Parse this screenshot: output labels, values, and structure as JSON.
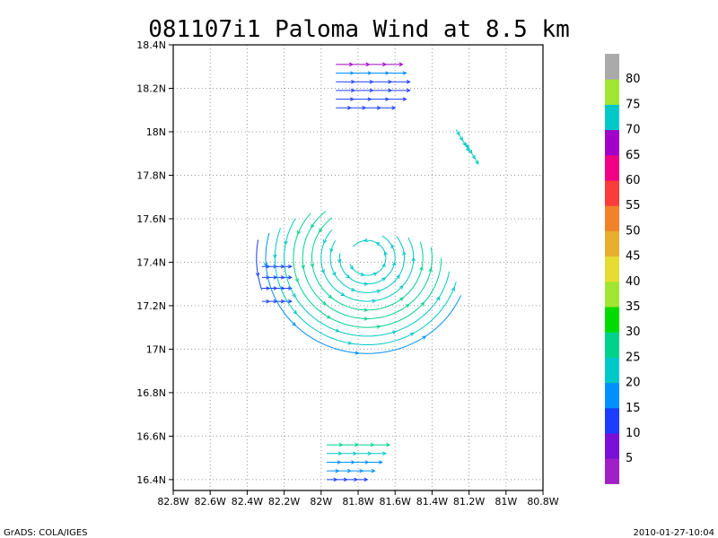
{
  "chart_data": {
    "type": "vector",
    "title": "081107i1 Paloma Wind at 8.5 km",
    "xlabel": "",
    "ylabel": "",
    "xlim": [
      -82.8,
      -80.8
    ],
    "ylim": [
      16.35,
      18.4
    ],
    "grid": true,
    "x_ticks": [
      {
        "value": -82.8,
        "label": "82.8W"
      },
      {
        "value": -82.6,
        "label": "82.6W"
      },
      {
        "value": -82.4,
        "label": "82.4W"
      },
      {
        "value": -82.2,
        "label": "82.2W"
      },
      {
        "value": -82.0,
        "label": "82W"
      },
      {
        "value": -81.8,
        "label": "81.8W"
      },
      {
        "value": -81.6,
        "label": "81.6W"
      },
      {
        "value": -81.4,
        "label": "81.4W"
      },
      {
        "value": -81.2,
        "label": "81.2W"
      },
      {
        "value": -81.0,
        "label": "81W"
      },
      {
        "value": -80.8,
        "label": "80.8W"
      }
    ],
    "y_ticks": [
      {
        "value": 16.4,
        "label": "16.4N"
      },
      {
        "value": 16.6,
        "label": "16.6N"
      },
      {
        "value": 16.8,
        "label": "16.8N"
      },
      {
        "value": 17.0,
        "label": "17N"
      },
      {
        "value": 17.2,
        "label": "17.2N"
      },
      {
        "value": 17.4,
        "label": "17.4N"
      },
      {
        "value": 17.6,
        "label": "17.6N"
      },
      {
        "value": 17.8,
        "label": "17.8N"
      },
      {
        "value": 18.0,
        "label": "18N"
      },
      {
        "value": 18.2,
        "label": "18.2N"
      },
      {
        "value": 18.4,
        "label": "18.4N"
      }
    ],
    "vortex_center": {
      "lon": -81.75,
      "lat": 17.42
    },
    "streamlines": [
      {
        "lon": -81.92,
        "lat": 18.31,
        "u": 1,
        "v": 0,
        "len": 0.36,
        "speed": 65
      },
      {
        "lon": -81.92,
        "lat": 18.27,
        "u": 1,
        "v": 0,
        "len": 0.38,
        "speed": 15
      },
      {
        "lon": -81.92,
        "lat": 18.23,
        "u": 1,
        "v": 0,
        "len": 0.4,
        "speed": 13
      },
      {
        "lon": -81.92,
        "lat": 18.19,
        "u": 1,
        "v": 0,
        "len": 0.4,
        "speed": 12
      },
      {
        "lon": -81.92,
        "lat": 18.15,
        "u": 1,
        "v": 0,
        "len": 0.38,
        "speed": 12
      },
      {
        "lon": -81.92,
        "lat": 18.11,
        "u": 1,
        "v": 0,
        "len": 0.32,
        "speed": 12
      },
      {
        "lon": -81.27,
        "lat": 18.01,
        "u": 0.5,
        "v": -0.7,
        "len": 0.12,
        "speed": 20
      },
      {
        "lon": -81.22,
        "lat": 17.95,
        "u": 0.5,
        "v": -0.7,
        "len": 0.12,
        "speed": 22
      },
      {
        "lon": -82.32,
        "lat": 17.38,
        "u": 1,
        "v": 0,
        "len": 0.16,
        "speed": 14
      },
      {
        "lon": -82.32,
        "lat": 17.33,
        "u": 1,
        "v": 0,
        "len": 0.16,
        "speed": 14
      },
      {
        "lon": -82.32,
        "lat": 17.28,
        "u": 1,
        "v": 0,
        "len": 0.16,
        "speed": 14
      },
      {
        "lon": -82.32,
        "lat": 17.22,
        "u": 1,
        "v": 0,
        "len": 0.16,
        "speed": 14
      },
      {
        "lon": -81.97,
        "lat": 16.56,
        "u": 1,
        "v": 0,
        "len": 0.34,
        "speed": 25
      },
      {
        "lon": -81.97,
        "lat": 16.52,
        "u": 1,
        "v": 0,
        "len": 0.32,
        "speed": 20
      },
      {
        "lon": -81.97,
        "lat": 16.48,
        "u": 1,
        "v": 0,
        "len": 0.3,
        "speed": 18
      },
      {
        "lon": -81.97,
        "lat": 16.44,
        "u": 1,
        "v": 0,
        "len": 0.26,
        "speed": 15
      },
      {
        "lon": -81.97,
        "lat": 16.4,
        "u": 1,
        "v": 0,
        "len": 0.22,
        "speed": 12
      }
    ],
    "vortex_rings": [
      {
        "radius": 0.1,
        "start_deg": 200,
        "end_deg": 500,
        "speed": 22
      },
      {
        "radius": 0.15,
        "start_deg": 170,
        "end_deg": 420,
        "speed": 23
      },
      {
        "radius": 0.2,
        "start_deg": 150,
        "end_deg": 400,
        "speed": 24
      },
      {
        "radius": 0.25,
        "start_deg": 140,
        "end_deg": 390,
        "speed": 24
      },
      {
        "radius": 0.3,
        "start_deg": 130,
        "end_deg": 380,
        "speed": 25
      },
      {
        "radius": 0.35,
        "start_deg": 130,
        "end_deg": 370,
        "speed": 26
      },
      {
        "radius": 0.4,
        "start_deg": 140,
        "end_deg": 360,
        "speed": 25
      },
      {
        "radius": 0.45,
        "start_deg": 150,
        "end_deg": 350,
        "speed": 22
      },
      {
        "radius": 0.5,
        "start_deg": 160,
        "end_deg": 345,
        "speed": 20
      },
      {
        "radius": 0.55,
        "start_deg": 165,
        "end_deg": 340,
        "speed": 18
      },
      {
        "radius": 0.6,
        "start_deg": 170,
        "end_deg": 200,
        "speed": 14
      }
    ],
    "colorbar": {
      "levels": [
        "5",
        "10",
        "15",
        "20",
        "25",
        "30",
        "35",
        "40",
        "45",
        "50",
        "55",
        "60",
        "65",
        "70",
        "75",
        "80"
      ],
      "colors": [
        "#a020c8",
        "#7a10d8",
        "#1c3cff",
        "#0090ff",
        "#00c8c8",
        "#00d28c",
        "#00dc00",
        "#a0e632",
        "#e6dc32",
        "#e6af2d",
        "#f08228",
        "#fa3c3c",
        "#f00082",
        "#a000c8",
        "#00c8c8",
        "#a0e632",
        "#aaaaaa"
      ]
    }
  },
  "footer": {
    "left": "GrADS: COLA/IGES",
    "right": "2010-01-27-10:04"
  }
}
